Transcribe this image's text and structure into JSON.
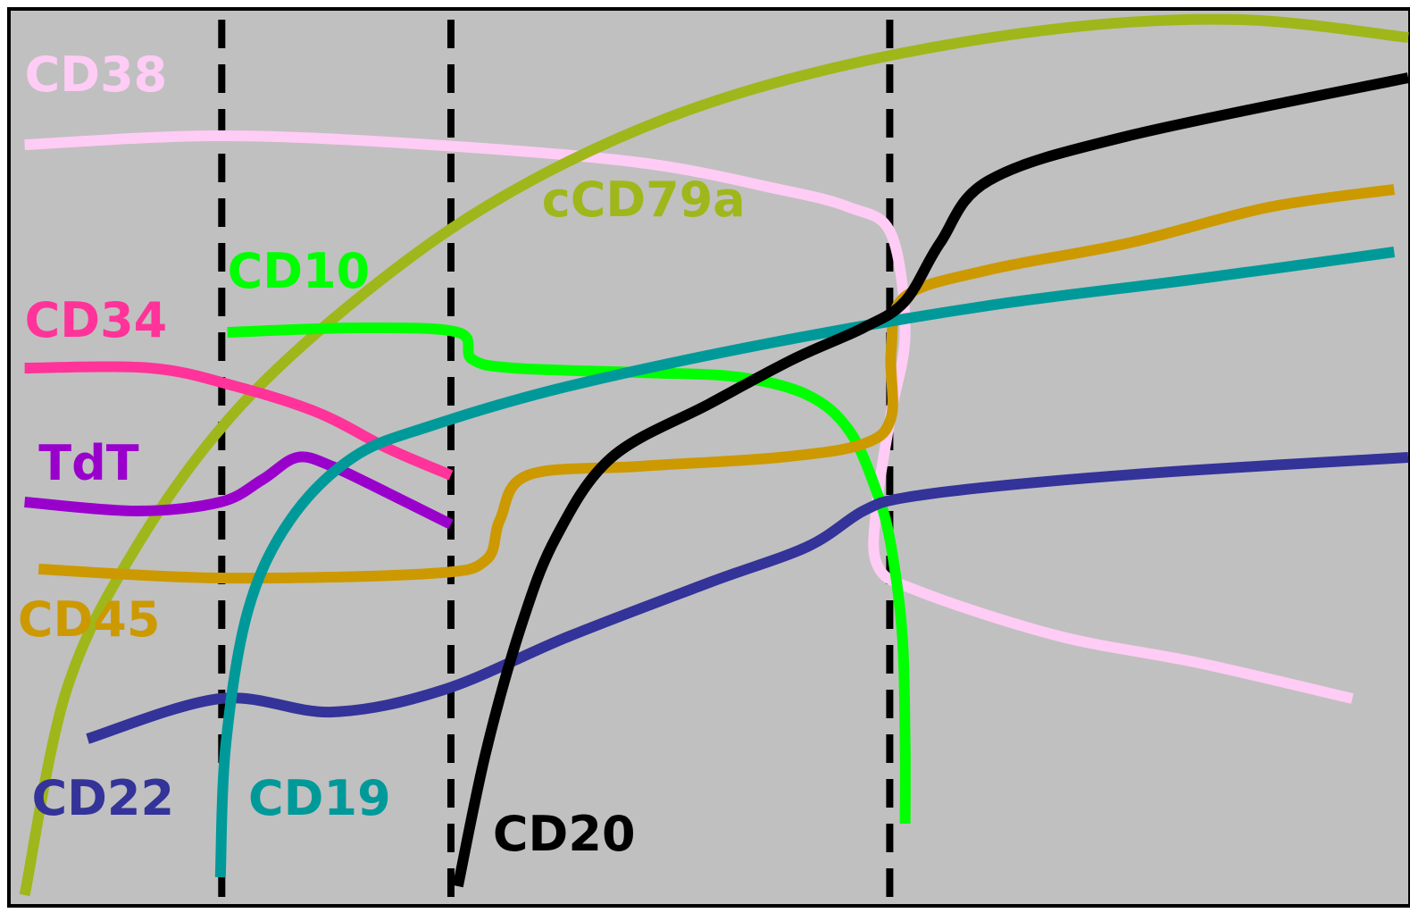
{
  "chart_data": {
    "type": "line",
    "title": "",
    "xlabel": "",
    "ylabel": "",
    "xlim": [
      0,
      100
    ],
    "ylim": [
      0,
      100
    ],
    "grid": false,
    "background_color": "#c0c0c0",
    "stage_boundaries": [
      15.1,
      31.5,
      62.9
    ],
    "series": [
      {
        "name": "CD38",
        "color": "#ffccf5",
        "points": [
          [
            1,
            85
          ],
          [
            15,
            86
          ],
          [
            30,
            85
          ],
          [
            45,
            83
          ],
          [
            55,
            80
          ],
          [
            60,
            78
          ],
          [
            63,
            75
          ],
          [
            64,
            64
          ],
          [
            63,
            55
          ],
          [
            62,
            45
          ],
          [
            62,
            38
          ],
          [
            65,
            35
          ],
          [
            75,
            30
          ],
          [
            85,
            27
          ],
          [
            96,
            23
          ]
        ],
        "label_pos": [
          1,
          91
        ]
      },
      {
        "name": "cCD79a",
        "color": "#9fb71b",
        "points": [
          [
            1,
            1
          ],
          [
            4,
            24
          ],
          [
            9,
            40
          ],
          [
            16,
            55
          ],
          [
            25,
            68
          ],
          [
            35,
            79
          ],
          [
            47,
            88
          ],
          [
            60,
            94
          ],
          [
            75,
            98
          ],
          [
            88,
            99
          ],
          [
            100,
            97
          ]
        ],
        "label_pos": [
          38,
          77
        ]
      },
      {
        "name": "CD10",
        "color": "#00ff00",
        "points": [
          [
            15.5,
            64
          ],
          [
            25,
            64.5
          ],
          [
            32,
            64
          ],
          [
            33,
            61
          ],
          [
            36,
            60
          ],
          [
            45,
            59.5
          ],
          [
            52,
            59
          ],
          [
            57,
            57
          ],
          [
            60,
            53
          ],
          [
            62,
            46
          ],
          [
            63,
            40
          ],
          [
            63.8,
            30
          ],
          [
            64,
            18
          ],
          [
            64,
            9
          ]
        ],
        "label_pos": [
          15.5,
          69
        ]
      },
      {
        "name": "CD34",
        "color": "#ff3399",
        "points": [
          [
            1,
            60
          ],
          [
            10,
            60
          ],
          [
            16,
            58
          ],
          [
            22,
            55
          ],
          [
            27,
            51
          ],
          [
            31.5,
            48
          ]
        ],
        "label_pos": [
          1,
          63.5
        ]
      },
      {
        "name": "TdT",
        "color": "#9900cc",
        "points": [
          [
            1,
            45
          ],
          [
            9,
            44
          ],
          [
            15,
            45
          ],
          [
            18,
            47.5
          ],
          [
            20.5,
            50
          ],
          [
            23,
            49
          ],
          [
            27,
            46
          ],
          [
            31.5,
            42.5
          ]
        ],
        "label_pos": [
          2,
          47.5
        ]
      },
      {
        "name": "CD45",
        "color": "#cc9900",
        "points": [
          [
            2,
            37.5
          ],
          [
            15,
            36.5
          ],
          [
            30,
            37
          ],
          [
            34,
            38.5
          ],
          [
            35,
            43
          ],
          [
            37,
            48
          ],
          [
            45,
            49
          ],
          [
            55,
            50
          ],
          [
            61,
            51.5
          ],
          [
            63,
            54.5
          ],
          [
            63,
            62
          ],
          [
            64,
            68
          ],
          [
            70,
            71
          ],
          [
            80,
            74
          ],
          [
            90,
            78
          ],
          [
            99,
            80
          ]
        ],
        "label_pos": [
          0.5,
          30
        ]
      },
      {
        "name": "CD22",
        "color": "#333399",
        "points": [
          [
            5.5,
            18.5
          ],
          [
            15,
            23
          ],
          [
            23,
            21.5
          ],
          [
            31,
            24
          ],
          [
            40,
            30
          ],
          [
            50,
            36
          ],
          [
            57,
            40
          ],
          [
            61,
            44
          ],
          [
            64,
            45.5
          ],
          [
            72,
            47
          ],
          [
            84,
            48.5
          ],
          [
            100,
            50
          ]
        ],
        "label_pos": [
          1.5,
          10
        ]
      },
      {
        "name": "CD19",
        "color": "#009999",
        "points": [
          [
            15,
            3
          ],
          [
            15.4,
            18
          ],
          [
            17,
            33
          ],
          [
            20,
            43
          ],
          [
            24.5,
            50
          ],
          [
            30,
            53.5
          ],
          [
            40,
            58
          ],
          [
            55,
            63
          ],
          [
            70,
            67
          ],
          [
            85,
            70
          ],
          [
            99,
            73
          ]
        ],
        "label_pos": [
          17,
          10
        ]
      },
      {
        "name": "CD20",
        "color": "#000000",
        "points": [
          [
            32,
            2
          ],
          [
            34,
            17
          ],
          [
            36.5,
            31
          ],
          [
            39,
            41
          ],
          [
            43,
            50
          ],
          [
            50,
            56
          ],
          [
            56,
            61
          ],
          [
            61,
            64.5
          ],
          [
            64,
            67.5
          ],
          [
            66.5,
            74
          ],
          [
            70,
            81
          ],
          [
            80,
            86
          ],
          [
            100,
            92.5
          ]
        ],
        "label_pos": [
          34.5,
          6
        ]
      }
    ]
  }
}
